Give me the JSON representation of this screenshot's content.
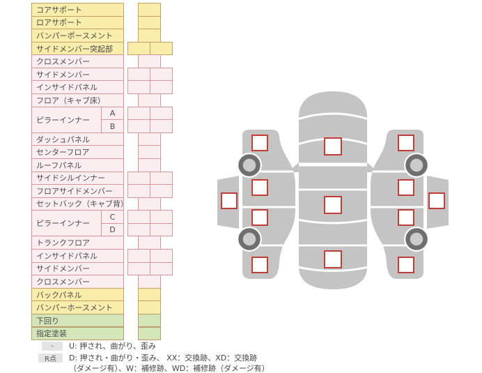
{
  "colors": {
    "yellow_bg": "#f8edaa",
    "yellow_border": "#c9a063",
    "pink_bg": "#fbeef0",
    "pink_border": "#d99595",
    "green_bg": "#d5e5ba",
    "green_border": "#b99f6a",
    "marker_border": "#c23c38",
    "car_gray": "#c4c4c4",
    "wheel_dark": "#6f6f6f",
    "wheel_light": "#cbcbcb",
    "legend_box_bg": "#e4e4e4"
  },
  "table": {
    "rows": [
      {
        "label": "コアサポート",
        "theme": "yellow",
        "cells": "single",
        "label_span": 1
      },
      {
        "label": "ロアサポート",
        "theme": "yellow",
        "cells": "single",
        "label_span": 1
      },
      {
        "label": "バンパーポースメント",
        "theme": "yellow",
        "cells": "single",
        "label_span": 1
      },
      {
        "label": "サイドメンバー突起部",
        "theme": "yellow",
        "cells": "double",
        "label_span": 1
      },
      {
        "label": "クロスメンバー",
        "theme": "pink",
        "cells": "single",
        "label_span": 1
      },
      {
        "label": "サイドメンバー",
        "theme": "pink",
        "cells": "double",
        "label_span": 1
      },
      {
        "label": "インサイドパネル",
        "theme": "pink",
        "cells": "double",
        "label_span": 1
      },
      {
        "label": "フロア（キャブ床）",
        "theme": "pink",
        "cells": "single",
        "label_span": 1
      },
      {
        "label": "ピラーインナー",
        "theme": "pink",
        "cells": "double",
        "label_span": 2,
        "sub": "A"
      },
      {
        "label": "",
        "theme": "pink",
        "cells": "double",
        "label_span": 0,
        "sub": "B"
      },
      {
        "label": "ダッシュパネル",
        "theme": "pink",
        "cells": "single",
        "label_span": 1
      },
      {
        "label": "センターフロア",
        "theme": "pink",
        "cells": "single",
        "label_span": 1
      },
      {
        "label": "ルーフパネル",
        "theme": "pink",
        "cells": "single",
        "label_span": 1
      },
      {
        "label": "サイドシルインナー",
        "theme": "pink",
        "cells": "double",
        "label_span": 1
      },
      {
        "label": "フロアサイドメンバー",
        "theme": "pink",
        "cells": "double",
        "label_span": 1
      },
      {
        "label": "セットバック（キャブ背）",
        "theme": "pink",
        "cells": "single",
        "label_span": 1
      },
      {
        "label": "ピラーインナー",
        "theme": "pink",
        "cells": "double",
        "label_span": 2,
        "sub": "C"
      },
      {
        "label": "",
        "theme": "pink",
        "cells": "double",
        "label_span": 0,
        "sub": "D"
      },
      {
        "label": "トランクフロア",
        "theme": "pink",
        "cells": "single",
        "label_span": 1
      },
      {
        "label": "インサイドパネル",
        "theme": "pink",
        "cells": "double",
        "label_span": 1
      },
      {
        "label": "サイドメンバー",
        "theme": "pink",
        "cells": "double",
        "label_span": 1
      },
      {
        "label": "クロスメンバー",
        "theme": "pink",
        "cells": "single",
        "label_span": 1
      },
      {
        "label": "バックパネル",
        "theme": "yellow",
        "cells": "single",
        "label_span": 1
      },
      {
        "label": "バンパーホースメント",
        "theme": "yellow",
        "cells": "single",
        "label_span": 1
      },
      {
        "label": "下回り",
        "theme": "green",
        "cells": "single",
        "label_span": 1
      },
      {
        "label": "指定塗装",
        "theme": "green",
        "cells": "single",
        "label_span": 1
      }
    ]
  },
  "legend": {
    "row1_symbol": "-",
    "row1_text": "U: 押され、曲がり、歪み",
    "row2_symbol": "R点",
    "row2_text_line1": "D: 押され・曲がり・歪み、 XX：交換跡、XD：交換跡",
    "row2_text_line2": "（ダメージ有）、W：補修跡、WD：補修跡（ダメージ有）"
  }
}
